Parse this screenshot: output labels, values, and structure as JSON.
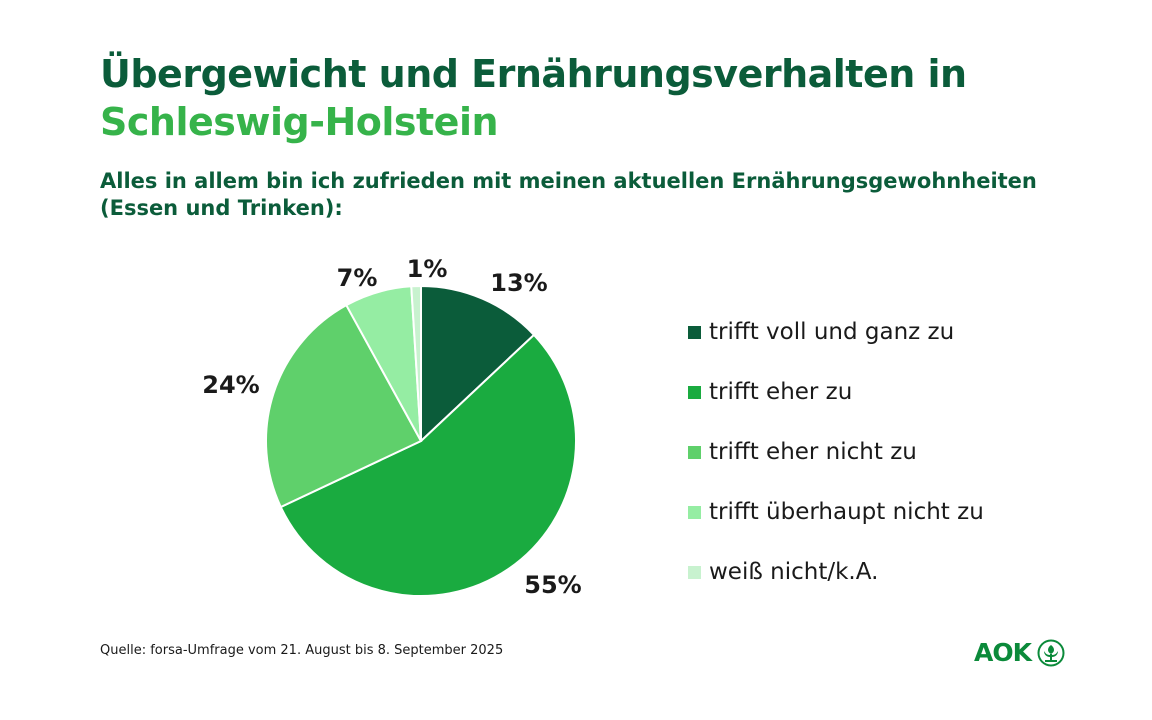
{
  "title": {
    "line1": "Übergewicht und Ernährungsverhalten in",
    "line2": "Schleswig-Holstein"
  },
  "subtitle": "Alles in allem bin ich zufrieden mit meinen aktuellen Ernährungsgewohnheiten (Essen und Trinken):",
  "chart_data": {
    "type": "pie",
    "categories": [
      "trifft voll und ganz zu",
      "trifft eher zu",
      "trifft eher nicht zu",
      "trifft überhaupt nicht zu",
      "weiß nicht/k.A."
    ],
    "values": [
      13,
      55,
      24,
      7,
      1
    ],
    "labels": [
      "13%",
      "55%",
      "24%",
      "7%",
      "1%"
    ],
    "colors": [
      "#0b5c3a",
      "#1aab40",
      "#5fd06b",
      "#95eda3",
      "#c8f2cf"
    ],
    "legend": "right"
  },
  "source": "Quelle: forsa-Umfrage vom 21. August bis 8. September 2025",
  "logo": {
    "text": "AOK",
    "icon": "aok-tree-icon"
  },
  "colors": {
    "dark_green": "#0b5c3a",
    "light_green": "#36b34a"
  }
}
